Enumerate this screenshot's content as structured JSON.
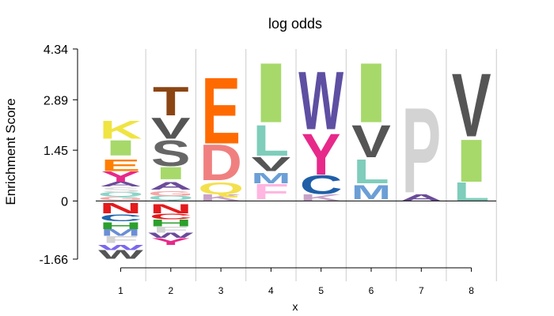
{
  "chart_data": {
    "type": "sequence-logo",
    "title": "log odds",
    "xlabel": "x",
    "ylabel": "Enrichment Score",
    "ylim": [
      -1.66,
      4.34
    ],
    "y_ticks": [
      "-1.66",
      "0",
      "1.45",
      "2.89",
      "4.34"
    ],
    "y_tick_values": [
      -1.66,
      0,
      1.45,
      2.89,
      4.34
    ],
    "grid": true,
    "positions": [
      {
        "x": "1",
        "stack": [
          {
            "letter": "W",
            "bottom": -1.65,
            "top": -1.4,
            "color": "#555555"
          },
          {
            "letter": "W",
            "bottom": -1.4,
            "top": -1.25,
            "color": "#7b68ee"
          },
          {
            "letter": "F",
            "bottom": -1.2,
            "top": -1.0,
            "color": "#d3d3d3"
          },
          {
            "letter": "M",
            "bottom": -1.0,
            "top": -0.8,
            "color": "#6b8fd6"
          },
          {
            "letter": "H",
            "bottom": -0.8,
            "top": -0.6,
            "color": "#2ca02c"
          },
          {
            "letter": "C",
            "bottom": -0.58,
            "top": -0.38,
            "color": "#2166ac"
          },
          {
            "letter": "N",
            "bottom": -0.35,
            "top": -0.05,
            "color": "#e41a1c"
          },
          {
            "letter": "G",
            "bottom": 0.02,
            "top": 0.12,
            "color": "#f4a6a6"
          },
          {
            "letter": "Q",
            "bottom": 0.12,
            "top": 0.25,
            "color": "#8dd3c7"
          },
          {
            "letter": "S",
            "bottom": 0.25,
            "top": 0.4,
            "color": "#dddddd"
          },
          {
            "letter": "A",
            "bottom": 0.42,
            "top": 0.55,
            "color": "#6b4c9a"
          },
          {
            "letter": "Y",
            "bottom": 0.55,
            "top": 0.85,
            "color": "#e7298a"
          },
          {
            "letter": "E",
            "bottom": 0.85,
            "top": 1.2,
            "color": "#ff7f00"
          },
          {
            "letter": "I",
            "bottom": 1.3,
            "top": 1.75,
            "color": "#a6d96a"
          },
          {
            "letter": "K",
            "bottom": 1.78,
            "top": 2.3,
            "color": "#f0e442"
          }
        ]
      },
      {
        "x": "2",
        "stack": [
          {
            "letter": "Y",
            "bottom": -1.25,
            "top": -1.05,
            "color": "#e7298a"
          },
          {
            "letter": "W",
            "bottom": -1.05,
            "top": -0.9,
            "color": "#6b4c9a"
          },
          {
            "letter": "F",
            "bottom": -0.9,
            "top": -0.72,
            "color": "#d3d3d3"
          },
          {
            "letter": "H",
            "bottom": -0.72,
            "top": -0.52,
            "color": "#2ca02c"
          },
          {
            "letter": "C",
            "bottom": -0.52,
            "top": -0.35,
            "color": "#e41a1c"
          },
          {
            "letter": "N",
            "bottom": -0.35,
            "top": -0.08,
            "color": "#e41a1c"
          },
          {
            "letter": "Q",
            "bottom": 0.02,
            "top": 0.15,
            "color": "#8dd3c7"
          },
          {
            "letter": "G",
            "bottom": 0.15,
            "top": 0.28,
            "color": "#f4a6a6"
          },
          {
            "letter": "A",
            "bottom": 0.32,
            "top": 0.55,
            "color": "#6b4c9a"
          },
          {
            "letter": "I",
            "bottom": 0.62,
            "top": 0.98,
            "color": "#a6d96a"
          },
          {
            "letter": "S",
            "bottom": 1.0,
            "top": 1.75,
            "color": "#666666"
          },
          {
            "letter": "V",
            "bottom": 1.78,
            "top": 2.4,
            "color": "#555555"
          },
          {
            "letter": "T",
            "bottom": 2.45,
            "top": 3.3,
            "color": "#8b4513"
          }
        ]
      },
      {
        "x": "3",
        "stack": [
          {
            "letter": "K",
            "bottom": 0.0,
            "top": 0.2,
            "color": "#c8a2c8"
          },
          {
            "letter": "Q",
            "bottom": 0.2,
            "top": 0.55,
            "color": "#f4e04d"
          },
          {
            "letter": "D",
            "bottom": 0.6,
            "top": 1.65,
            "color": "#f08080"
          },
          {
            "letter": "E",
            "bottom": 1.65,
            "top": 3.6,
            "color": "#ff6a00"
          }
        ]
      },
      {
        "x": "4",
        "stack": [
          {
            "letter": "F",
            "bottom": 0.05,
            "top": 0.5,
            "color": "#ffb6e1"
          },
          {
            "letter": "M",
            "bottom": 0.5,
            "top": 0.8,
            "color": "#6b9fd6"
          },
          {
            "letter": "V",
            "bottom": 0.85,
            "top": 1.25,
            "color": "#555555"
          },
          {
            "letter": "L",
            "bottom": 1.3,
            "top": 2.2,
            "color": "#7fcdbb"
          },
          {
            "letter": "I",
            "bottom": 2.25,
            "top": 4.0,
            "color": "#a6d96a"
          }
        ]
      },
      {
        "x": "5",
        "stack": [
          {
            "letter": "K",
            "bottom": 0.0,
            "top": 0.2,
            "color": "#c8a2c8"
          },
          {
            "letter": "C",
            "bottom": 0.2,
            "top": 0.75,
            "color": "#1f5fa8"
          },
          {
            "letter": "Y",
            "bottom": 0.75,
            "top": 1.95,
            "color": "#e7298a"
          },
          {
            "letter": "W",
            "bottom": 2.05,
            "top": 3.75,
            "color": "#5e4fa2"
          }
        ]
      },
      {
        "x": "6",
        "stack": [
          {
            "letter": "M",
            "bottom": 0.05,
            "top": 0.45,
            "color": "#6b9fd6"
          },
          {
            "letter": "L",
            "bottom": 0.5,
            "top": 1.2,
            "color": "#7fcdbb"
          },
          {
            "letter": "V",
            "bottom": 1.25,
            "top": 2.2,
            "color": "#555555"
          },
          {
            "letter": "I",
            "bottom": 2.25,
            "top": 4.0,
            "color": "#a6d96a"
          }
        ]
      },
      {
        "x": "7",
        "stack": [
          {
            "letter": "A",
            "bottom": 0.0,
            "top": 0.2,
            "color": "#6b4c9a"
          },
          {
            "letter": "P",
            "bottom": 0.25,
            "top": 2.75,
            "color": "#d3d3d3"
          }
        ]
      },
      {
        "x": "8",
        "stack": [
          {
            "letter": "L",
            "bottom": 0.0,
            "top": 0.55,
            "color": "#7fcdbb"
          },
          {
            "letter": "I",
            "bottom": 0.55,
            "top": 1.8,
            "color": "#a6d96a"
          },
          {
            "letter": "V",
            "bottom": 1.85,
            "top": 3.7,
            "color": "#555555"
          }
        ]
      }
    ]
  }
}
